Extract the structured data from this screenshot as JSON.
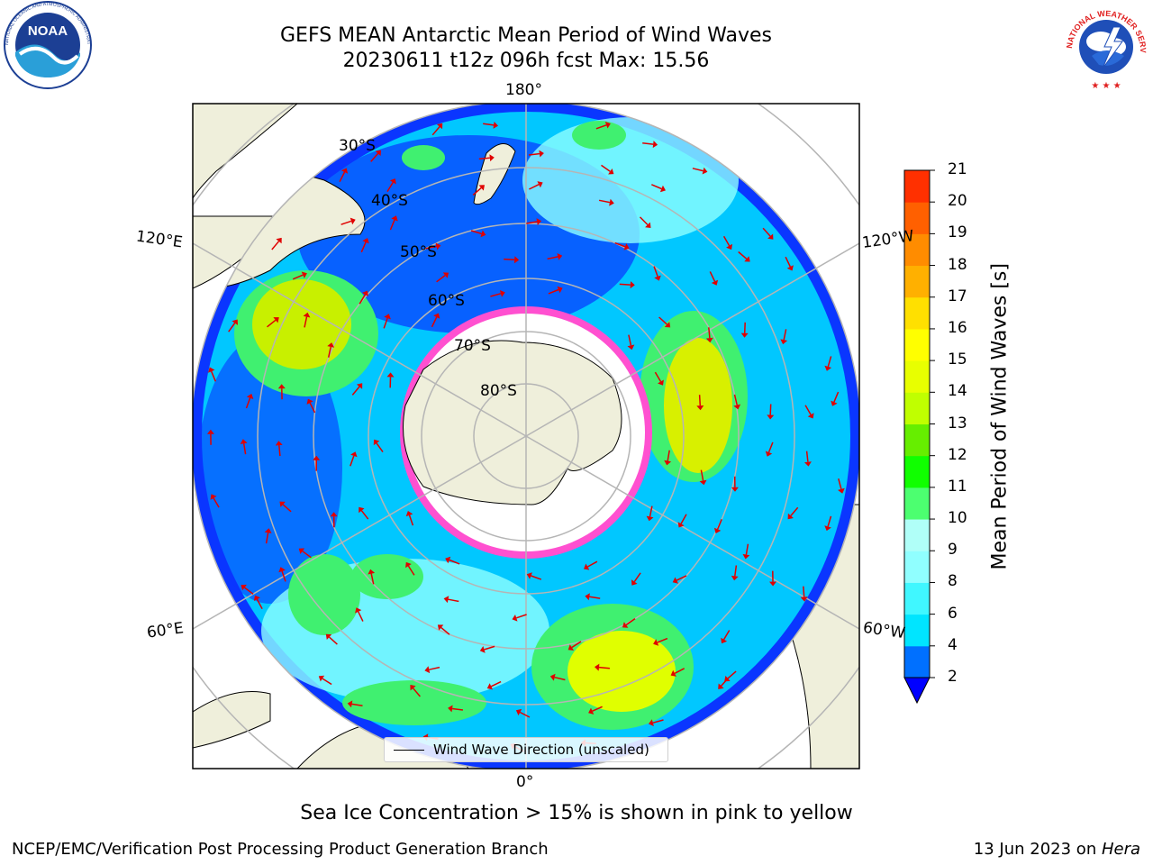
{
  "title": {
    "line1": "GEFS MEAN Antarctic Mean Period of Wind Waves",
    "line2": "20230611 t12z 096h fcst   Max: 15.56"
  },
  "logos": {
    "left": {
      "name": "NOAA",
      "text": "NOAA",
      "ring_text": "NATIONAL OCEANIC AND ATMOSPHERIC ADMINISTRATION · U.S. DEPARTMENT OF COMMERCE"
    },
    "right": {
      "name": "National Weather Service",
      "ring_text": "NATIONAL WEATHER SERVICE"
    }
  },
  "map": {
    "longitude_labels": {
      "top": "180°",
      "bottom": "0°",
      "upper_left": "120°E",
      "upper_right": "120°W",
      "lower_left": "60°E",
      "lower_right": "60°W"
    },
    "latitude_labels": [
      "30°S",
      "40°S",
      "50°S",
      "60°S",
      "70°S",
      "80°S"
    ],
    "legend": {
      "label": "Wind Wave Direction (unscaled)"
    }
  },
  "colorbar": {
    "label": "Mean Period of Wind Waves [s]",
    "ticks": [
      "2",
      "4",
      "6",
      "8",
      "9",
      "10",
      "11",
      "12",
      "13",
      "14",
      "15",
      "16",
      "17",
      "18",
      "19",
      "20",
      "21"
    ],
    "colors": [
      "#0070ff",
      "#00e5ff",
      "#40f7ff",
      "#90ffff",
      "#b0fff8",
      "#4cff70",
      "#10ff00",
      "#66ee00",
      "#c0ff00",
      "#e8ff00",
      "#ffff00",
      "#ffe000",
      "#ffb000",
      "#ff8c00",
      "#ff6000",
      "#ff3000",
      "#ff0000"
    ],
    "under_color": "#0000ff"
  },
  "notes": {
    "sea_ice": "Sea Ice Concentration > 15% is shown in pink to yellow",
    "footer_left": "NCEP/EMC/Verification Post Processing Product Generation Branch",
    "footer_right_prefix": "13 Jun 2023 on ",
    "footer_right_host": "Hera"
  }
}
